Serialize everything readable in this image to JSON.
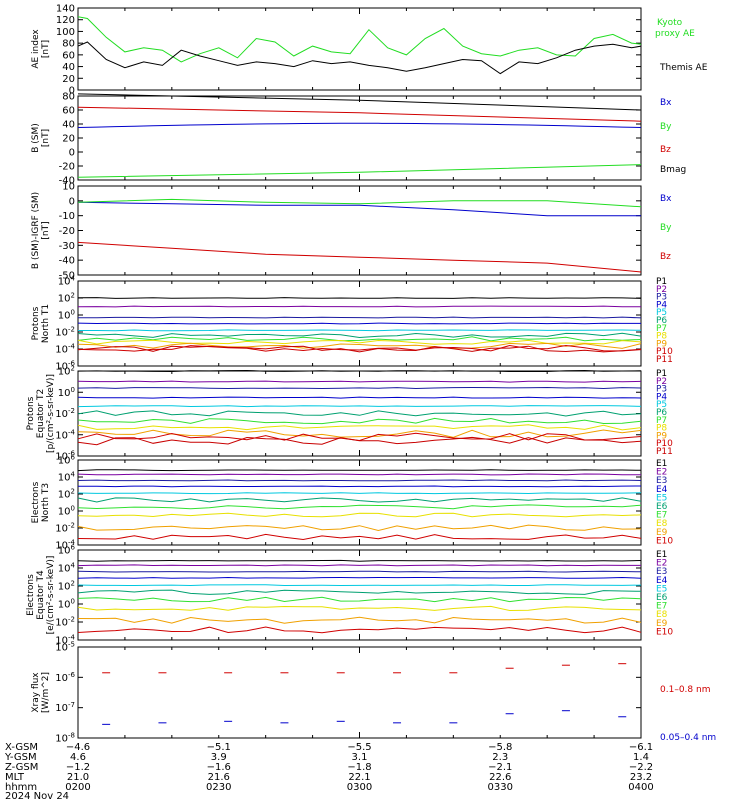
{
  "colors": {
    "black": "#000000",
    "red": "#d00000",
    "green": "#22dd22",
    "blue": "#0000cc",
    "purple": "#7a00a0",
    "darkblue": "#1a1aa0",
    "cyan": "#00c8e0",
    "teal": "#00a070",
    "lgreen": "#30e030",
    "yellow": "#e8e000",
    "orange": "#f0a000",
    "dred": "#c80000"
  },
  "chart_data": [
    {
      "type": "line",
      "ylabel": "AE index [nT]",
      "ylim": [
        0,
        140
      ],
      "yticks": [
        "0",
        "20",
        "40",
        "60",
        "80",
        "100",
        "120",
        "140"
      ],
      "series": [
        {
          "name": "Kyoto proxy AE",
          "color": "green",
          "x": [
            0,
            1,
            3,
            5,
            7,
            9,
            11,
            13,
            15,
            17,
            19,
            21,
            23,
            25,
            27,
            29,
            31,
            33,
            35,
            37,
            39,
            41,
            43,
            45,
            47,
            49,
            51,
            53,
            55,
            57,
            59,
            60
          ],
          "y": [
            125,
            122,
            90,
            65,
            72,
            68,
            48,
            62,
            72,
            55,
            88,
            82,
            58,
            75,
            65,
            62,
            103,
            72,
            60,
            88,
            105,
            75,
            62,
            58,
            68,
            72,
            60,
            58,
            88,
            95,
            80,
            78
          ]
        },
        {
          "name": "Themis AE",
          "color": "black",
          "x": [
            0,
            1,
            3,
            5,
            7,
            9,
            11,
            13,
            15,
            17,
            19,
            21,
            23,
            25,
            27,
            29,
            31,
            33,
            35,
            37,
            39,
            41,
            43,
            45,
            47,
            49,
            51,
            53,
            55,
            57,
            59,
            60
          ],
          "y": [
            75,
            82,
            52,
            38,
            48,
            42,
            68,
            58,
            50,
            42,
            48,
            45,
            40,
            50,
            45,
            48,
            42,
            38,
            32,
            38,
            45,
            52,
            50,
            28,
            48,
            45,
            55,
            68,
            75,
            78,
            72,
            75
          ]
        }
      ]
    },
    {
      "type": "line",
      "ylabel": "B (SM) [nT]",
      "ylim": [
        -40,
        80
      ],
      "yticks": [
        "-40",
        "-20",
        "0",
        "20",
        "40",
        "60",
        "80"
      ],
      "series": [
        {
          "name": "Bx",
          "color": "blue",
          "x": [
            0,
            60
          ],
          "y": [
            35,
            35
          ],
          "mid": 40
        },
        {
          "name": "By",
          "color": "green",
          "x": [
            0,
            60
          ],
          "y": [
            -36,
            -18
          ]
        },
        {
          "name": "Bz",
          "color": "red",
          "x": [
            0,
            60
          ],
          "y": [
            64,
            44
          ]
        },
        {
          "name": "Bmag",
          "color": "black",
          "x": [
            0,
            60
          ],
          "y": [
            83,
            60
          ]
        }
      ]
    },
    {
      "type": "line",
      "ylabel": "B (SM)-IGRF (SM) [nT]",
      "ylim": [
        -50,
        10
      ],
      "yticks": [
        "-50",
        "-40",
        "-30",
        "-20",
        "-10",
        "0",
        "10"
      ],
      "series": [
        {
          "name": "Bx",
          "color": "blue",
          "x": [
            0,
            10,
            20,
            30,
            40,
            50,
            60
          ],
          "y": [
            -1,
            -2,
            -3,
            -3,
            -6,
            -10,
            -10
          ]
        },
        {
          "name": "By",
          "color": "green",
          "x": [
            0,
            10,
            20,
            30,
            40,
            50,
            60
          ],
          "y": [
            -1,
            1,
            -1,
            -2,
            0,
            0,
            -4
          ]
        },
        {
          "name": "Bz",
          "color": "red",
          "x": [
            0,
            10,
            20,
            30,
            40,
            50,
            60
          ],
          "y": [
            -28,
            -32,
            -36,
            -38,
            -40,
            -42,
            -48
          ]
        }
      ]
    },
    {
      "type": "line",
      "ylabel": "Protons North T1",
      "ylim_log": [
        -6,
        4
      ],
      "yticks": [
        "10^-6",
        "10^-4",
        "10^-2",
        "10^0",
        "10^2",
        "10^4"
      ],
      "channels": [
        "P1",
        "P2",
        "P3",
        "P4",
        "P5",
        "P6",
        "P7",
        "P8",
        "P9",
        "P10",
        "P11"
      ],
      "levels": [
        2.0,
        1.0,
        -0.3,
        -1.0,
        -1.8,
        -2.4,
        -2.8,
        -3.2,
        -3.6,
        -3.9,
        -4.0
      ]
    },
    {
      "type": "line",
      "ylabel": "Protons Equator T2 [p/(cm²-s-sr-keV)]",
      "ylim_log": [
        -6,
        2
      ],
      "yticks": [
        "10^-6",
        "10^-4",
        "10^-2",
        "10^0",
        "10^2"
      ],
      "channels": [
        "P1",
        "P2",
        "P3",
        "P4",
        "P5",
        "P6",
        "P7",
        "P8",
        "P9",
        "P10",
        "P11"
      ],
      "levels": [
        2.0,
        1.0,
        0.4,
        -0.5,
        -1.3,
        -2.0,
        -2.7,
        -3.3,
        -3.9,
        -4.2,
        -4.6
      ]
    },
    {
      "type": "line",
      "ylabel": "Electrons North T3",
      "ylim_log": [
        -4,
        6
      ],
      "yticks": [
        "10^-4",
        "10^-2",
        "10^0",
        "10^2",
        "10^4",
        "10^6"
      ],
      "channels": [
        "E1",
        "E2",
        "E3",
        "E4",
        "E5",
        "E6",
        "E7",
        "E8",
        "E9",
        "E10"
      ],
      "levels": [
        4.8,
        4.3,
        3.6,
        2.9,
        2.1,
        1.3,
        0.5,
        -0.5,
        -2.0,
        -3.0
      ]
    },
    {
      "type": "line",
      "ylabel": "Electrons Equator T4 [e/(cm²-s-sr-keV)]",
      "ylim_log": [
        -4,
        6
      ],
      "yticks": [
        "10^-4",
        "10^-2",
        "10^0",
        "10^2",
        "10^4",
        "10^6"
      ],
      "channels": [
        "E1",
        "E2",
        "E3",
        "E4",
        "E5",
        "E6",
        "E7",
        "E8",
        "E9",
        "E10"
      ],
      "levels": [
        4.8,
        4.3,
        3.6,
        2.9,
        2.1,
        1.3,
        0.5,
        -0.5,
        -1.8,
        -2.9
      ]
    },
    {
      "type": "scatter",
      "ylabel": "X-ray flux [W/m^2]",
      "ylim_log": [
        -8,
        -5
      ],
      "yticks": [
        "10^-8",
        "10^-7",
        "10^-6",
        "10^-5"
      ],
      "series": [
        {
          "name": "0.1-0.8 nm",
          "color": "red",
          "x": [
            3,
            9,
            16,
            22,
            28,
            34,
            40,
            46,
            52,
            58
          ],
          "y": [
            -5.85,
            -5.85,
            -5.85,
            -5.85,
            -5.85,
            -5.85,
            -5.85,
            -5.7,
            -5.6,
            -5.55
          ]
        },
        {
          "name": "0.05-0.4 nm",
          "color": "blue",
          "x": [
            3,
            9,
            16,
            22,
            28,
            34,
            40,
            46,
            52,
            58
          ],
          "y": [
            -7.55,
            -7.5,
            -7.45,
            -7.5,
            -7.45,
            -7.5,
            -7.5,
            -7.2,
            -7.1,
            -7.3
          ]
        }
      ]
    }
  ],
  "kyoto_label_1": "Kyoto",
  "kyoto_label_2": "proxy AE",
  "themis_label": "Themis AE",
  "ae_axis_l1": "AE index",
  "ae_axis_l2": "[nT]",
  "b_axis_l1": "B (SM)",
  "b_axis_l2": "[nT]",
  "bi_axis_l1": "B (SM)-IGRF (SM)",
  "bi_axis_l2": "[nT]",
  "p1_axis_l1": "Protons",
  "p1_axis_l2": "North T1",
  "p2_axis_l1": "Protons",
  "p2_axis_l2": "Equator T2",
  "p2_axis_l3": "[p/(cm²-s-sr-keV)]",
  "e1_axis_l1": "Electrons",
  "e1_axis_l2": "North T3",
  "e2_axis_l1": "Electrons",
  "e2_axis_l2": "Equator T4",
  "e2_axis_l3": "[e/(cm²-s-sr-keV)]",
  "x_axis_l1": "Xray flux",
  "x_axis_l2": "[W/m^2]",
  "xray_red_label": "0.1–0.8 nm",
  "xray_blue_label": "0.05–0.4 nm",
  "bottom": {
    "rows": [
      {
        "label": "X-GSM",
        "values": [
          "−4.6",
          "−5.1",
          "−5.5",
          "−5.8",
          "−6.1"
        ]
      },
      {
        "label": "Y-GSM",
        "values": [
          "4.6",
          "3.9",
          "3.1",
          "2.3",
          "1.4"
        ]
      },
      {
        "label": "Z-GSM",
        "values": [
          "−1.2",
          "−1.6",
          "−1.8",
          "−2.1",
          "−2.2"
        ]
      },
      {
        "label": "MLT",
        "values": [
          "21.0",
          "21.6",
          "22.1",
          "22.6",
          "23.2"
        ]
      },
      {
        "label": "hhmm",
        "values": [
          "0200",
          "0230",
          "0300",
          "0330",
          "0400"
        ]
      }
    ],
    "date": "2024 Nov 24"
  }
}
